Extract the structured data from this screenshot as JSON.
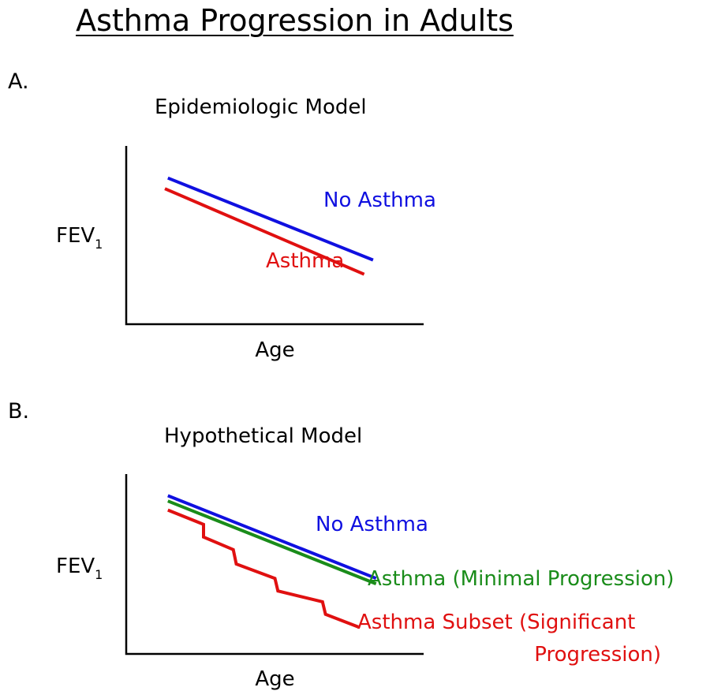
{
  "title": "Asthma Progression in Adults",
  "chart_data": [
    {
      "panel": "A.",
      "title": "Epidemiologic Model",
      "type": "line",
      "xlabel": "Age",
      "ylabel": "FEV",
      "ylabel_sub": "1",
      "grid": false,
      "series": [
        {
          "name": "No Asthma",
          "color": "#1010e0",
          "points": [
            [
              0.14,
              0.82
            ],
            [
              0.83,
              0.36
            ]
          ]
        },
        {
          "name": "Asthma",
          "color": "#e01010",
          "points": [
            [
              0.13,
              0.76
            ],
            [
              0.8,
              0.28
            ]
          ]
        }
      ]
    },
    {
      "panel": "B.",
      "title": "Hypothetical Model",
      "type": "line",
      "xlabel": "Age",
      "ylabel": "FEV",
      "ylabel_sub": "1",
      "grid": false,
      "series": [
        {
          "name": "No Asthma",
          "color": "#1010e0",
          "points": [
            [
              0.14,
              0.88
            ],
            [
              0.84,
              0.42
            ]
          ]
        },
        {
          "name": "Asthma (Minimal Progression)",
          "color": "#1a8c1a",
          "points": [
            [
              0.14,
              0.85
            ],
            [
              0.84,
              0.39
            ]
          ]
        },
        {
          "name": "Asthma Subset (Significant Progression)",
          "color": "#e01010",
          "points": [
            [
              0.14,
              0.8
            ],
            [
              0.26,
              0.72
            ],
            [
              0.26,
              0.65
            ],
            [
              0.36,
              0.58
            ],
            [
              0.37,
              0.5
            ],
            [
              0.5,
              0.42
            ],
            [
              0.51,
              0.35
            ],
            [
              0.66,
              0.29
            ],
            [
              0.67,
              0.22
            ],
            [
              0.78,
              0.15
            ]
          ]
        }
      ]
    }
  ]
}
